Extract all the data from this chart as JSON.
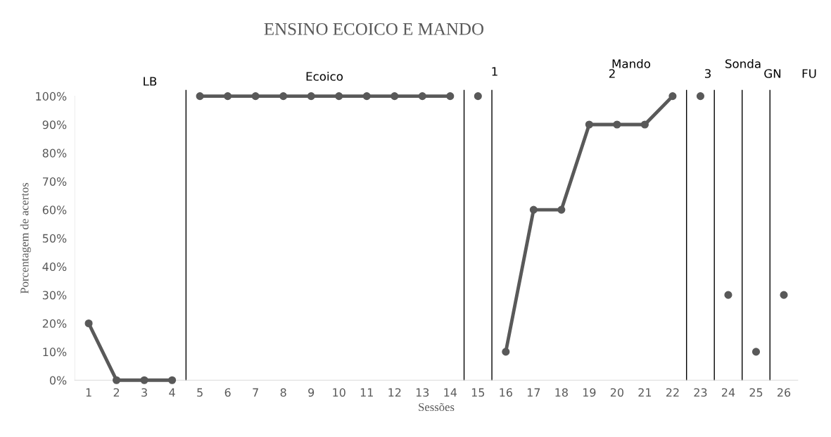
{
  "chart_data": {
    "type": "line",
    "title": "ENSINO ECOICO E MANDO",
    "xlabel": "Sessões",
    "ylabel": "Porcentagem de acertos",
    "xlim": [
      0.5,
      26.5
    ],
    "xticks": [
      1,
      2,
      3,
      4,
      5,
      6,
      7,
      8,
      9,
      10,
      11,
      12,
      13,
      14,
      15,
      16,
      17,
      18,
      19,
      20,
      21,
      22,
      23,
      24,
      25,
      26
    ],
    "ylim": [
      0,
      100
    ],
    "yticks": [
      {
        "value": 0,
        "label": "0%"
      },
      {
        "value": 10,
        "label": "10%"
      },
      {
        "value": 20,
        "label": "20%"
      },
      {
        "value": 30,
        "label": "30%"
      },
      {
        "value": 40,
        "label": "40%"
      },
      {
        "value": 50,
        "label": "50%"
      },
      {
        "value": 60,
        "label": "60%"
      },
      {
        "value": 70,
        "label": "70%"
      },
      {
        "value": 80,
        "label": "80%"
      },
      {
        "value": 90,
        "label": "90%"
      },
      {
        "value": 100,
        "label": "100%"
      }
    ],
    "grid": false,
    "marker": "circle",
    "line_style": "solid",
    "series": [
      {
        "color": "#595959",
        "x": [
          1,
          2,
          3,
          4
        ],
        "values": [
          20,
          0,
          0,
          0
        ]
      },
      {
        "color": "#595959",
        "x": [
          5,
          6,
          7,
          8,
          9,
          10,
          11,
          12,
          13,
          14
        ],
        "values": [
          100,
          100,
          100,
          100,
          100,
          100,
          100,
          100,
          100,
          100
        ]
      },
      {
        "color": "#595959",
        "x": [
          15
        ],
        "values": [
          100
        ]
      },
      {
        "color": "#595959",
        "x": [
          16,
          17,
          18,
          19,
          20,
          21,
          22
        ],
        "values": [
          10,
          60,
          60,
          90,
          90,
          90,
          100
        ]
      },
      {
        "color": "#595959",
        "x": [
          23
        ],
        "values": [
          100
        ]
      },
      {
        "color": "#595959",
        "x": [
          24
        ],
        "values": [
          30
        ]
      },
      {
        "color": "#595959",
        "x": [
          25
        ],
        "values": [
          10
        ]
      },
      {
        "color": "#595959",
        "x": [
          26
        ],
        "values": [
          30
        ]
      }
    ],
    "ref_lines": [
      {
        "axis": "x",
        "value": 4.5,
        "color": "#000000"
      },
      {
        "axis": "x",
        "value": 14.5,
        "color": "#000000"
      },
      {
        "axis": "x",
        "value": 15.5,
        "color": "#000000"
      },
      {
        "axis": "x",
        "value": 22.5,
        "color": "#000000"
      },
      {
        "axis": "x",
        "value": 23.5,
        "color": "#000000"
      },
      {
        "axis": "x",
        "value": 24.5,
        "color": "#000000"
      },
      {
        "axis": "x",
        "value": 25.5,
        "color": "#000000"
      }
    ],
    "annotations": [
      "LB",
      "Ecoico",
      "1",
      "Mando",
      "2",
      "3",
      "Sonda",
      "GN",
      "FU"
    ]
  }
}
